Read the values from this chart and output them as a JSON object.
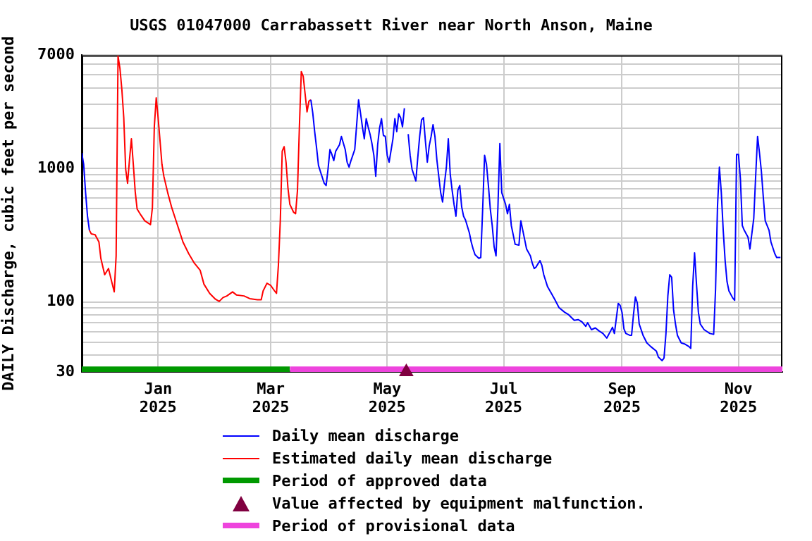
{
  "chart_data": {
    "type": "line",
    "title": "USGS 01047000 Carrabassett River near North Anson, Maine",
    "ylabel": "DAILY Discharge, cubic feet per second",
    "log": true,
    "grid": true,
    "legend": "bottom",
    "xlim": [
      "2024-11-22",
      "2025-11-24"
    ],
    "xticks": [
      {
        "value": "2025-01-01",
        "label": "Jan 2025"
      },
      {
        "value": "2025-03-01",
        "label": "Mar 2025"
      },
      {
        "value": "2025-05-01",
        "label": "May 2025"
      },
      {
        "value": "2025-07-01",
        "label": "Jul 2025"
      },
      {
        "value": "2025-09-01",
        "label": "Sep 2025"
      },
      {
        "value": "2025-11-01",
        "label": "Nov 2025"
      }
    ],
    "ylim": [
      30,
      7000
    ],
    "yticks": [
      30,
      {
        "value": 40,
        "label": null
      },
      {
        "value": 50,
        "label": null
      },
      {
        "value": 60,
        "label": null
      },
      {
        "value": 70,
        "label": null
      },
      {
        "value": 80,
        "label": null
      },
      {
        "value": 90,
        "label": null
      },
      100,
      {
        "value": 200,
        "label": null
      },
      {
        "value": 300,
        "label": null
      },
      {
        "value": 400,
        "label": null
      },
      {
        "value": 500,
        "label": null
      },
      {
        "value": 600,
        "label": null
      },
      {
        "value": 700,
        "label": null
      },
      {
        "value": 800,
        "label": null
      },
      {
        "value": 900,
        "label": null
      },
      1000,
      {
        "value": 2000,
        "label": null
      },
      {
        "value": 3000,
        "label": null
      },
      {
        "value": 4000,
        "label": null
      },
      {
        "value": 5000,
        "label": null
      },
      {
        "value": 6000,
        "label": null
      },
      7000
    ],
    "series": [
      {
        "name": "Daily mean discharge",
        "color": "#0000ff",
        "x": [
          "2024-11-22",
          "2024-11-23",
          "2024-11-24",
          "2024-11-25",
          "2024-11-26",
          "2025-01-01",
          "2025-03-22",
          "2025-03-23",
          "2025-03-24",
          "2025-03-25",
          "2025-03-26",
          "2025-03-27",
          "2025-03-29",
          "2025-03-30",
          "2025-03-31",
          "2025-04-01",
          "2025-04-02",
          "2025-04-03",
          "2025-04-04",
          "2025-04-06",
          "2025-04-07",
          "2025-04-09",
          "2025-04-10",
          "2025-04-11",
          "2025-04-12",
          "2025-04-14",
          "2025-04-15",
          "2025-04-16",
          "2025-04-17",
          "2025-04-18",
          "2025-04-19",
          "2025-04-20",
          "2025-04-21",
          "2025-04-22",
          "2025-04-23",
          "2025-04-24",
          "2025-04-25",
          "2025-04-26",
          "2025-04-27",
          "2025-04-28",
          "2025-04-29",
          "2025-04-30",
          "2025-05-01",
          "2025-05-02",
          "2025-05-04",
          "2025-05-05",
          "2025-05-06",
          "2025-05-07",
          "2025-05-08",
          "2025-05-09",
          "2025-05-10",
          "2025-05-11",
          "2025-05-12",
          "2025-05-13",
          "2025-05-14",
          "2025-05-16",
          "2025-05-17",
          "2025-05-18",
          "2025-05-19",
          "2025-05-20",
          "2025-05-21",
          "2025-05-22",
          "2025-05-23",
          "2025-05-24",
          "2025-05-25",
          "2025-05-26",
          "2025-05-27",
          "2025-05-28",
          "2025-05-29",
          "2025-05-30",
          "2025-05-31",
          "2025-06-01",
          "2025-06-02",
          "2025-06-03",
          "2025-06-04",
          "2025-06-05",
          "2025-06-06",
          "2025-06-07",
          "2025-06-08",
          "2025-06-09",
          "2025-06-10",
          "2025-06-11",
          "2025-06-13",
          "2025-06-14",
          "2025-06-15",
          "2025-06-16",
          "2025-06-18",
          "2025-06-19",
          "2025-06-20",
          "2025-06-21",
          "2025-06-22",
          "2025-06-23",
          "2025-06-24",
          "2025-06-25",
          "2025-06-26",
          "2025-06-27",
          "2025-06-28",
          "2025-06-29",
          "2025-06-30",
          "2025-07-02",
          "2025-07-03",
          "2025-07-04",
          "2025-07-05",
          "2025-07-06",
          "2025-07-07",
          "2025-07-09",
          "2025-07-10",
          "2025-07-11",
          "2025-07-12",
          "2025-07-13",
          "2025-07-15",
          "2025-07-16",
          "2025-07-17",
          "2025-07-18",
          "2025-07-20",
          "2025-07-21",
          "2025-07-22",
          "2025-07-24",
          "2025-07-26",
          "2025-07-28",
          "2025-07-30",
          "2025-08-02",
          "2025-08-04",
          "2025-08-07",
          "2025-08-09",
          "2025-08-11",
          "2025-08-13",
          "2025-08-14",
          "2025-08-16",
          "2025-08-18",
          "2025-08-20",
          "2025-08-22",
          "2025-08-24",
          "2025-08-26",
          "2025-08-27",
          "2025-08-28",
          "2025-08-30",
          "2025-08-31",
          "2025-09-01",
          "2025-09-02",
          "2025-09-03",
          "2025-09-05",
          "2025-09-06",
          "2025-09-07",
          "2025-09-08",
          "2025-09-09",
          "2025-09-10",
          "2025-09-12",
          "2025-09-14",
          "2025-09-16",
          "2025-09-19",
          "2025-09-20",
          "2025-09-22",
          "2025-09-23",
          "2025-09-24",
          "2025-09-25",
          "2025-09-26",
          "2025-09-27",
          "2025-09-28",
          "2025-09-29",
          "2025-09-30",
          "2025-10-02",
          "2025-10-04",
          "2025-10-06",
          "2025-10-07",
          "2025-10-08",
          "2025-10-09",
          "2025-10-10",
          "2025-10-11",
          "2025-10-12",
          "2025-10-14",
          "2025-10-17",
          "2025-10-19",
          "2025-10-20",
          "2025-10-21",
          "2025-10-22",
          "2025-10-23",
          "2025-10-24",
          "2025-10-25",
          "2025-10-26",
          "2025-10-27",
          "2025-10-29",
          "2025-10-30",
          "2025-10-31",
          "2025-11-01",
          "2025-11-02",
          "2025-11-03",
          "2025-11-04",
          "2025-11-06",
          "2025-11-07",
          "2025-11-09",
          "2025-11-10",
          "2025-11-11",
          "2025-11-12",
          "2025-11-13",
          "2025-11-14",
          "2025-11-15",
          "2025-11-17",
          "2025-11-18",
          "2025-11-20",
          "2025-11-21",
          "2025-11-23"
        ],
        "values": [
          1300,
          1070,
          658,
          438,
          344,
          null,
          3250,
          2590,
          1880,
          1420,
          1050,
          945,
          772,
          742,
          984,
          1380,
          1270,
          1140,
          1340,
          1500,
          1730,
          1380,
          1110,
          1020,
          1140,
          1380,
          2120,
          3250,
          2590,
          2040,
          1660,
          2350,
          2040,
          1800,
          1530,
          1250,
          871,
          1500,
          2000,
          2350,
          1760,
          1730,
          1250,
          1110,
          1660,
          2350,
          1880,
          2550,
          2390,
          2040,
          2810,
          null,
          1800,
          1250,
          984,
          804,
          1200,
          1730,
          2300,
          2390,
          1600,
          1110,
          1470,
          1730,
          2120,
          1730,
          1160,
          871,
          658,
          559,
          772,
          1020,
          1660,
          908,
          684,
          537,
          438,
          684,
          742,
          515,
          438,
          411,
          330,
          281,
          249,
          226,
          212,
          215,
          495,
          1250,
          1070,
          742,
          495,
          373,
          259,
          221,
          515,
          1530,
          658,
          537,
          457,
          537,
          373,
          318,
          270,
          266,
          405,
          344,
          293,
          249,
          221,
          195,
          178,
          183,
          204,
          188,
          160,
          130,
          116,
          103,
          90.8,
          83.7,
          80.4,
          72.9,
          73.9,
          71,
          65.8,
          70,
          62.1,
          64,
          60.7,
          58.2,
          53.7,
          60.7,
          64.7,
          58.2,
          97.5,
          94.4,
          83.7,
          63,
          58.2,
          56.4,
          56.4,
          80.4,
          109,
          98.4,
          68.4,
          56.4,
          49.5,
          46.5,
          42.9,
          38.8,
          36.4,
          38.2,
          58,
          111,
          160,
          153,
          87,
          68.4,
          56.4,
          49.5,
          48.4,
          46.5,
          45,
          131,
          233,
          136,
          83.7,
          68.4,
          62.1,
          58.2,
          57.3,
          125,
          515,
          1020,
          658,
          344,
          204,
          142,
          121,
          107,
          103,
          1270,
          1270,
          837,
          373,
          344,
          305,
          249,
          421,
          871,
          1730,
          1300,
          945,
          606,
          405,
          344,
          281,
          230,
          215,
          215
        ]
      },
      {
        "name": "Estimated daily mean discharge",
        "color": "#ff0000",
        "x": [
          "2024-11-26",
          "2024-11-27",
          "2024-11-29",
          "2024-12-01",
          "2024-12-02",
          "2024-12-04",
          "2024-12-06",
          "2024-12-08",
          "2024-12-09",
          "2024-12-10",
          "2024-12-11",
          "2024-12-12",
          "2024-12-13",
          "2024-12-14",
          "2024-12-15",
          "2024-12-16",
          "2024-12-17",
          "2024-12-18",
          "2024-12-19",
          "2024-12-20",
          "2024-12-21",
          "2024-12-23",
          "2024-12-25",
          "2024-12-28",
          "2024-12-29",
          "2024-12-30",
          "2024-12-31",
          "2025-01-01",
          "2025-01-02",
          "2025-01-03",
          "2025-01-04",
          "2025-01-06",
          "2025-01-08",
          "2025-01-10",
          "2025-01-12",
          "2025-01-14",
          "2025-01-17",
          "2025-01-20",
          "2025-01-23",
          "2025-01-25",
          "2025-01-28",
          "2025-01-31",
          "2025-02-02",
          "2025-02-04",
          "2025-02-06",
          "2025-02-09",
          "2025-02-11",
          "2025-02-15",
          "2025-02-18",
          "2025-02-22",
          "2025-02-24",
          "2025-02-25",
          "2025-02-27",
          "2025-03-01",
          "2025-03-03",
          "2025-03-04",
          "2025-03-05",
          "2025-03-06",
          "2025-03-07",
          "2025-03-08",
          "2025-03-09",
          "2025-03-10",
          "2025-03-11",
          "2025-03-13",
          "2025-03-14",
          "2025-03-15",
          "2025-03-16",
          "2025-03-17",
          "2025-03-18",
          "2025-03-19",
          "2025-03-20",
          "2025-03-21",
          "2025-03-22"
        ],
        "values": [
          344,
          323,
          318,
          281,
          212,
          160,
          178,
          136,
          119,
          221,
          6900,
          5580,
          3880,
          2390,
          984,
          772,
          1157,
          1660,
          1070,
          668,
          495,
          446,
          405,
          379,
          507,
          2040,
          3360,
          2390,
          1600,
          1070,
          871,
          658,
          515,
          421,
          344,
          281,
          230,
          195,
          173,
          136,
          116,
          105,
          101,
          108,
          111,
          119,
          113,
          111,
          106,
          104,
          104,
          121,
          138,
          133,
          121,
          116,
          188,
          405,
          1340,
          1450,
          1110,
          713,
          537,
          468,
          457,
          684,
          2040,
          5280,
          4870,
          3580,
          2640,
          3180,
          3250
        ]
      },
      {
        "name": "Period of approved data",
        "color": "#009900",
        "type": "area",
        "x": [
          "2024-11-22",
          "2025-03-11"
        ],
        "values": [
          33,
          33
        ]
      },
      {
        "name": "Value affected by equipment malfunction.",
        "color": "#800040",
        "type": "scatter",
        "marker": "triangle",
        "x": [
          "2025-05-11"
        ],
        "values": [
          30
        ]
      },
      {
        "name": "Period of provisional data",
        "color": "#ee44dd",
        "type": "area",
        "x": [
          "2025-03-11",
          "2025-11-24"
        ],
        "values": [
          33,
          33
        ]
      }
    ]
  }
}
